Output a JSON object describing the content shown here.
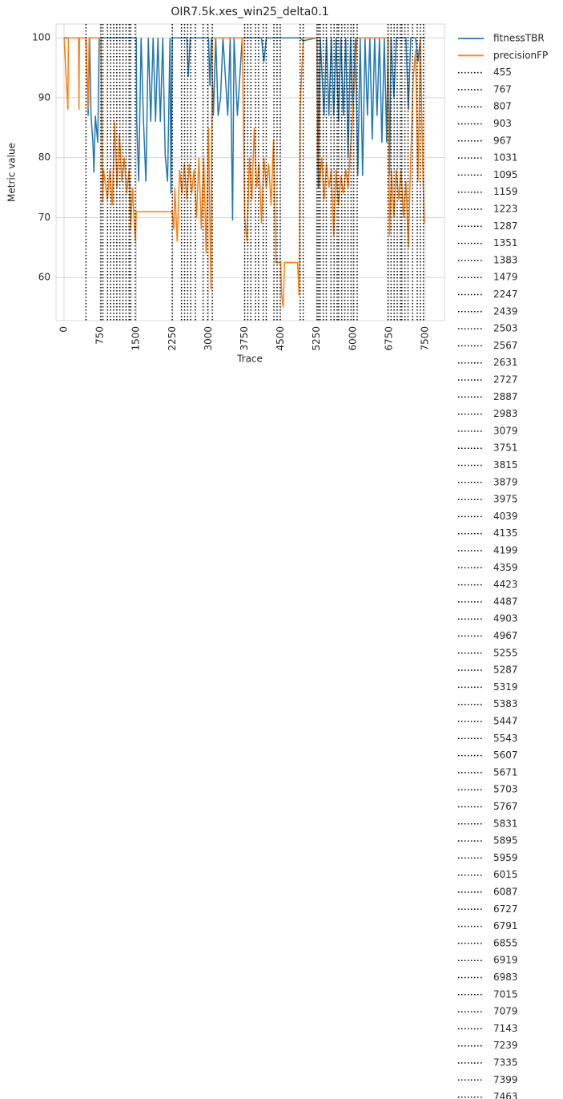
{
  "chart_data": {
    "type": "line",
    "title": "OIR7.5k.xes_win25_delta0.1",
    "xlabel": "Trace",
    "ylabel": "Metric value",
    "xlim": [
      -166,
      7900
    ],
    "ylim": [
      52.8,
      102.3
    ],
    "xticks": [
      0,
      750,
      1500,
      2250,
      3000,
      3750,
      4500,
      5250,
      6000,
      6750,
      7500
    ],
    "yticks": [
      60,
      70,
      80,
      90,
      100
    ],
    "grid": true,
    "legend": "outside-right",
    "series": [
      {
        "name": "fitnessTBR",
        "color": "#1f77b4",
        "x": [
          0,
          455,
          500,
          530,
          560,
          600,
          620,
          650,
          700,
          730,
          767,
          1500,
          1510,
          1550,
          1600,
          1650,
          1700,
          1750,
          1800,
          1850,
          1900,
          1950,
          2000,
          2050,
          2100,
          2150,
          2200,
          2220,
          2247,
          2550,
          2580,
          2620,
          3000,
          3030,
          3060,
          3100,
          3150,
          3200,
          3250,
          3300,
          3400,
          3450,
          3500,
          3530,
          3600,
          3700,
          3800,
          4100,
          4150,
          4200,
          4900,
          4967,
          5250,
          5280,
          5320,
          5400,
          5450,
          5500,
          5550,
          5600,
          5650,
          5700,
          5750,
          5800,
          5850,
          5900,
          5950,
          6000,
          6050,
          6100,
          6150,
          6200,
          6250,
          6300,
          6350,
          6400,
          6450,
          6500,
          6550,
          6600,
          6650,
          6700,
          6727,
          6760,
          6790,
          6850,
          6900,
          7000,
          7100,
          7150,
          7200,
          7300,
          7350,
          7400,
          7500
        ],
        "values": [
          100,
          100,
          87,
          100,
          87,
          82.5,
          77.5,
          87,
          82.5,
          100,
          100,
          100,
          86,
          76,
          100,
          86,
          76,
          100,
          86,
          100,
          86,
          100,
          86,
          100,
          80.5,
          76,
          100,
          74,
          100,
          100,
          93.5,
          100,
          100,
          92,
          100,
          87,
          100,
          87,
          90,
          100,
          87,
          100,
          69.5,
          100,
          87,
          100,
          100,
          100,
          96,
          100,
          100,
          99.5,
          100,
          75,
          100,
          87,
          100,
          87,
          100,
          87,
          100,
          86,
          100,
          87,
          100,
          80,
          100,
          87,
          100,
          77,
          100,
          77,
          100,
          87,
          100,
          83,
          100,
          87,
          100,
          82.5,
          100,
          82.5,
          100,
          77,
          100,
          90,
          100,
          100,
          100,
          88,
          100,
          100,
          96,
          100,
          100
        ]
      },
      {
        "name": "precisionFP",
        "color": "#ff7f0e",
        "x": [
          0,
          80,
          90,
          300,
          310,
          320,
          455,
          500,
          520,
          767,
          800,
          820,
          900,
          950,
          1000,
          1050,
          1100,
          1150,
          1200,
          1250,
          1300,
          1350,
          1383,
          1420,
          1479,
          1500,
          2247,
          2280,
          2300,
          2350,
          2400,
          2450,
          2500,
          2550,
          2600,
          2650,
          2700,
          2750,
          2800,
          2850,
          2900,
          2950,
          3000,
          3050,
          3079,
          3700,
          3751,
          3800,
          3850,
          3900,
          3950,
          4000,
          4050,
          4100,
          4150,
          4200,
          4250,
          4300,
          4350,
          4400,
          4500,
          4520,
          4550,
          4580,
          4850,
          4880,
          4903,
          4967,
          5255,
          5300,
          5350,
          5400,
          5450,
          5500,
          5550,
          5600,
          5650,
          5700,
          5750,
          5800,
          5850,
          5900,
          6087,
          6700,
          6727,
          6760,
          6800,
          6850,
          6900,
          6950,
          7000,
          7050,
          7100,
          7150,
          7200,
          7250,
          7300,
          7350,
          7400,
          7450,
          7480
        ],
        "values": [
          100,
          88,
          100,
          100,
          88,
          100,
          100,
          88,
          100,
          100,
          72.5,
          78,
          73,
          78,
          72,
          86,
          75,
          84,
          76,
          80,
          74,
          78,
          68,
          75,
          66,
          71,
          71,
          68,
          75,
          66,
          78,
          74,
          79,
          73,
          79,
          74,
          78,
          70,
          80,
          68,
          80,
          64,
          85,
          58,
          100,
          100,
          70,
          66,
          80,
          73,
          85,
          75,
          79,
          69,
          80,
          75,
          79,
          72,
          83,
          62.5,
          62.5,
          57,
          55,
          62.5,
          62.5,
          57,
          88,
          100,
          100,
          75,
          80,
          73,
          79,
          75,
          78,
          67,
          78,
          72,
          77,
          74,
          78,
          75,
          100,
          100,
          100,
          67,
          78,
          70,
          78,
          73,
          78,
          70,
          76,
          65,
          80,
          93,
          98,
          76,
          100,
          78,
          69
        ]
      }
    ],
    "vline_color": "#000000",
    "vlines": [
      455,
      767,
      807,
      903,
      967,
      1031,
      1095,
      1159,
      1223,
      1287,
      1351,
      1383,
      1479,
      2247,
      2439,
      2503,
      2567,
      2631,
      2727,
      2887,
      2983,
      3079,
      3751,
      3815,
      3879,
      3975,
      4039,
      4135,
      4199,
      4359,
      4423,
      4487,
      4903,
      4967,
      5255,
      5287,
      5319,
      5383,
      5447,
      5543,
      5607,
      5671,
      5703,
      5767,
      5831,
      5895,
      5959,
      6015,
      6087,
      6727,
      6791,
      6855,
      6919,
      6983,
      7015,
      7079,
      7143,
      7239,
      7335,
      7399,
      7463
    ]
  }
}
